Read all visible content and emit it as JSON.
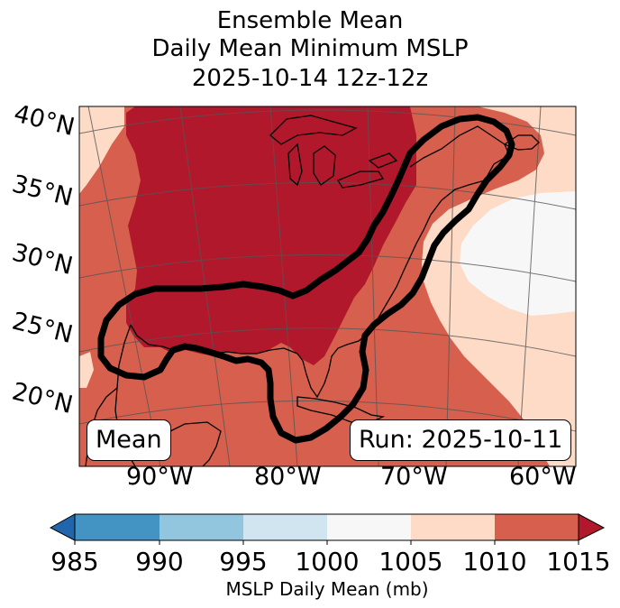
{
  "title": [
    "Ensemble Mean",
    "Daily Mean Minimum MSLP",
    "2025-10-14 12z-12z"
  ],
  "map": {
    "lat_labels": [
      "40°N",
      "35°N",
      "30°N",
      "25°N",
      "20°N"
    ],
    "lon_labels": [
      "90°W",
      "80°W",
      "70°W",
      "60°W"
    ],
    "mean_label": "Mean",
    "run_label": "Run: 2025-10-11",
    "colors": {
      "c985": "#2166ac",
      "c990": "#4393c3",
      "c995": "#92c5de",
      "c1000": "#d1e5f0",
      "c1005": "#f7f7f7",
      "c1010": "#fddbc7",
      "c1015": "#d6604d",
      "c_over": "#b2182b"
    }
  },
  "colorbar": {
    "label": "MSLP Daily Mean (mb)",
    "ticks": [
      "985",
      "990",
      "995",
      "1000",
      "1005",
      "1010",
      "1015"
    ],
    "colors": [
      "#2166ac",
      "#4393c3",
      "#92c5de",
      "#d1e5f0",
      "#f7f7f7",
      "#fddbc7",
      "#d6604d",
      "#b2182b"
    ]
  }
}
